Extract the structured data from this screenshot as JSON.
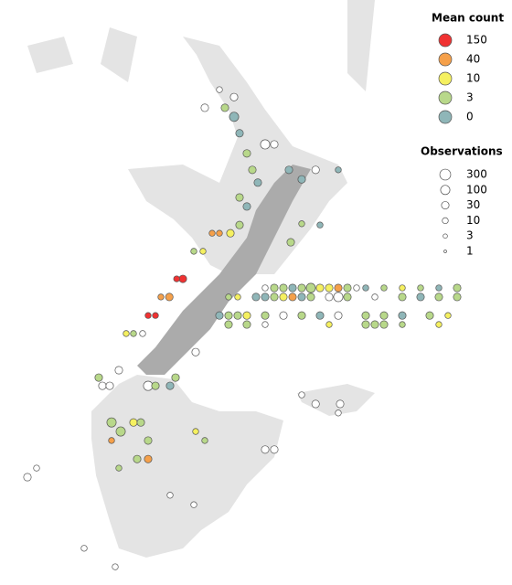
{
  "map": {
    "legend": {
      "color": {
        "title": "Mean count",
        "items": [
          {
            "value": 150,
            "color": "#f03232"
          },
          {
            "value": 40,
            "color": "#f5a04a"
          },
          {
            "value": 10,
            "color": "#f5f060"
          },
          {
            "value": 3,
            "color": "#b8d88a"
          },
          {
            "value": 0,
            "color": "#8fb6b8"
          }
        ]
      },
      "size": {
        "title": "Observations",
        "items": [
          300,
          100,
          30,
          10,
          3,
          1
        ]
      }
    },
    "lon": [
      172.75,
      173,
      173.25,
      173.5,
      173.75,
      174,
      174.25,
      174.5,
      174.75,
      175,
      175.25,
      175.5,
      176,
      176.5,
      177,
      177.5,
      178,
      171.75,
      172,
      172.5,
      172.75,
      173,
      173.25,
      173.5,
      173.75,
      174,
      174.5,
      174.75,
      175,
      175.75,
      176.5,
      177,
      177.5,
      178,
      171.5,
      171.75,
      172,
      172.25,
      172.75,
      173.25,
      173.75,
      174.25,
      174.75,
      175.5,
      176,
      176.5,
      177.25,
      177.75,
      171.75,
      172.25,
      172.75,
      174.5,
      175.5,
      175.75,
      176,
      176.5,
      177.5,
      171.65,
      171.9,
      172.05,
      172.25,
      172.4,
      172.55,
      172.75,
      173,
      173.4,
      173.75,
      174.13,
      174.75,
      171.1,
      171.5,
      171.9,
      172.05,
      172.25,
      172.05,
      171.8,
      171.5,
      171.3,
      171.05,
      170.8,
      170.5,
      170.33,
      170.13,
      169.9,
      169.55,
      169.75,
      169.15,
      168.95,
      170.85,
      173.75,
      173.45,
      174.25,
      170.3,
      170.15,
      169.55,
      169.75,
      168.55,
      168.8,
      169.15,
      169.35,
      169.55,
      169.55,
      169.25,
      168.75,
      168.55,
      168.2,
      168.3,
      172.75,
      173,
      174.13,
      174.8,
      174.75,
      173.75,
      170.85,
      171.1,
      170.15,
      170.8,
      166.25,
      166.5,
      167.8,
      168.65,
      169.4,
      168.75,
      168.5
    ],
    "lat": [
      -40.5,
      -40.5,
      -40.5,
      -40.5,
      -40.5,
      -40.5,
      -40.5,
      -40.5,
      -40.5,
      -40.5,
      -40.5,
      -40.5,
      -40.5,
      -40.5,
      -40.5,
      -40.5,
      -40.5,
      -40.72,
      -40.72,
      -40.72,
      -40.72,
      -40.72,
      -40.72,
      -40.72,
      -40.72,
      -40.72,
      -40.72,
      -40.72,
      -40.72,
      -40.72,
      -40.72,
      -40.72,
      -40.72,
      -40.72,
      -41.17,
      -41.17,
      -41.17,
      -41.17,
      -41.17,
      -41.17,
      -41.17,
      -41.17,
      -41.17,
      -41.17,
      -41.17,
      -41.17,
      -41.17,
      -41.17,
      -41.39,
      -41.39,
      -41.39,
      -41.39,
      -41.39,
      -41.39,
      -41.39,
      -41.39,
      -41.39,
      -36.12,
      -36.34,
      -36.74,
      -37.23,
      -37.63,
      -37.94,
      -37.01,
      -37.01,
      -37.63,
      -37.86,
      -37.63,
      -37.63,
      -36.12,
      -35.68,
      -35.86,
      -38.3,
      -38.52,
      -38.97,
      -39.17,
      -39.17,
      -39.17,
      -39.61,
      -39.61,
      -40.28,
      -40.28,
      -40.72,
      -40.72,
      -41.17,
      -41.17,
      -41.61,
      -41.61,
      -42.06,
      -38.94,
      -39.39,
      -38.97,
      -42.68,
      -42.88,
      -42.88,
      -42.88,
      -43.77,
      -43.99,
      -43.77,
      -43.77,
      -44.21,
      -44.66,
      -44.66,
      -44.88,
      -44.21,
      -42.68,
      -42.88,
      -44.43,
      -44.43,
      -43.32,
      -43.32,
      -43.54,
      -43.1,
      -43.99,
      -44.21,
      -45.54,
      -45.77,
      -45.1,
      -44.88,
      -46.83,
      -47.28,
      -41.61,
      -42.5,
      -42.88
    ],
    "mean": [
      null,
      3,
      3,
      0,
      3,
      3,
      10,
      10,
      40,
      3,
      null,
      0,
      3,
      10,
      3,
      0,
      3,
      3,
      10,
      0,
      0,
      3,
      10,
      40,
      0,
      3,
      null,
      null,
      3,
      null,
      3,
      0,
      3,
      3,
      0,
      3,
      3,
      10,
      3,
      null,
      3,
      0,
      null,
      3,
      3,
      0,
      3,
      10,
      3,
      3,
      null,
      10,
      3,
      3,
      3,
      3,
      10,
      3,
      0,
      0,
      3,
      3,
      0,
      null,
      null,
      0,
      0,
      null,
      0,
      null,
      null,
      null,
      3,
      0,
      3,
      10,
      40,
      40,
      10,
      3,
      150,
      150,
      40,
      40,
      150,
      150,
      3,
      10,
      null,
      3,
      3,
      0,
      3,
      0,
      null,
      3,
      3,
      3,
      10,
      3,
      3,
      40,
      3,
      3,
      40,
      3,
      null,
      null,
      null,
      null,
      null,
      null,
      null,
      10,
      3,
      null,
      null,
      null,
      null,
      null,
      null,
      null,
      null,
      null
    ],
    "obs": [
      10,
      30,
      30,
      30,
      30,
      100,
      30,
      30,
      30,
      30,
      10,
      10,
      10,
      10,
      10,
      10,
      30,
      10,
      10,
      30,
      30,
      30,
      30,
      30,
      30,
      30,
      30,
      100,
      30,
      10,
      30,
      30,
      30,
      30,
      30,
      30,
      30,
      30,
      30,
      30,
      30,
      30,
      30,
      30,
      30,
      30,
      30,
      10,
      30,
      30,
      10,
      10,
      30,
      30,
      30,
      10,
      10,
      30,
      100,
      30,
      30,
      30,
      30,
      100,
      30,
      30,
      30,
      30,
      10,
      30,
      10,
      30,
      30,
      30,
      30,
      30,
      10,
      10,
      10,
      10,
      30,
      10,
      30,
      10,
      10,
      10,
      10,
      10,
      30,
      10,
      30,
      10,
      30,
      30,
      100,
      30,
      100,
      100,
      30,
      30,
      30,
      30,
      30,
      10,
      10,
      30,
      30,
      30,
      30,
      30,
      30,
      10,
      10,
      10,
      10,
      10,
      10,
      30,
      10,
      10,
      10,
      10,
      30,
      30
    ]
  }
}
